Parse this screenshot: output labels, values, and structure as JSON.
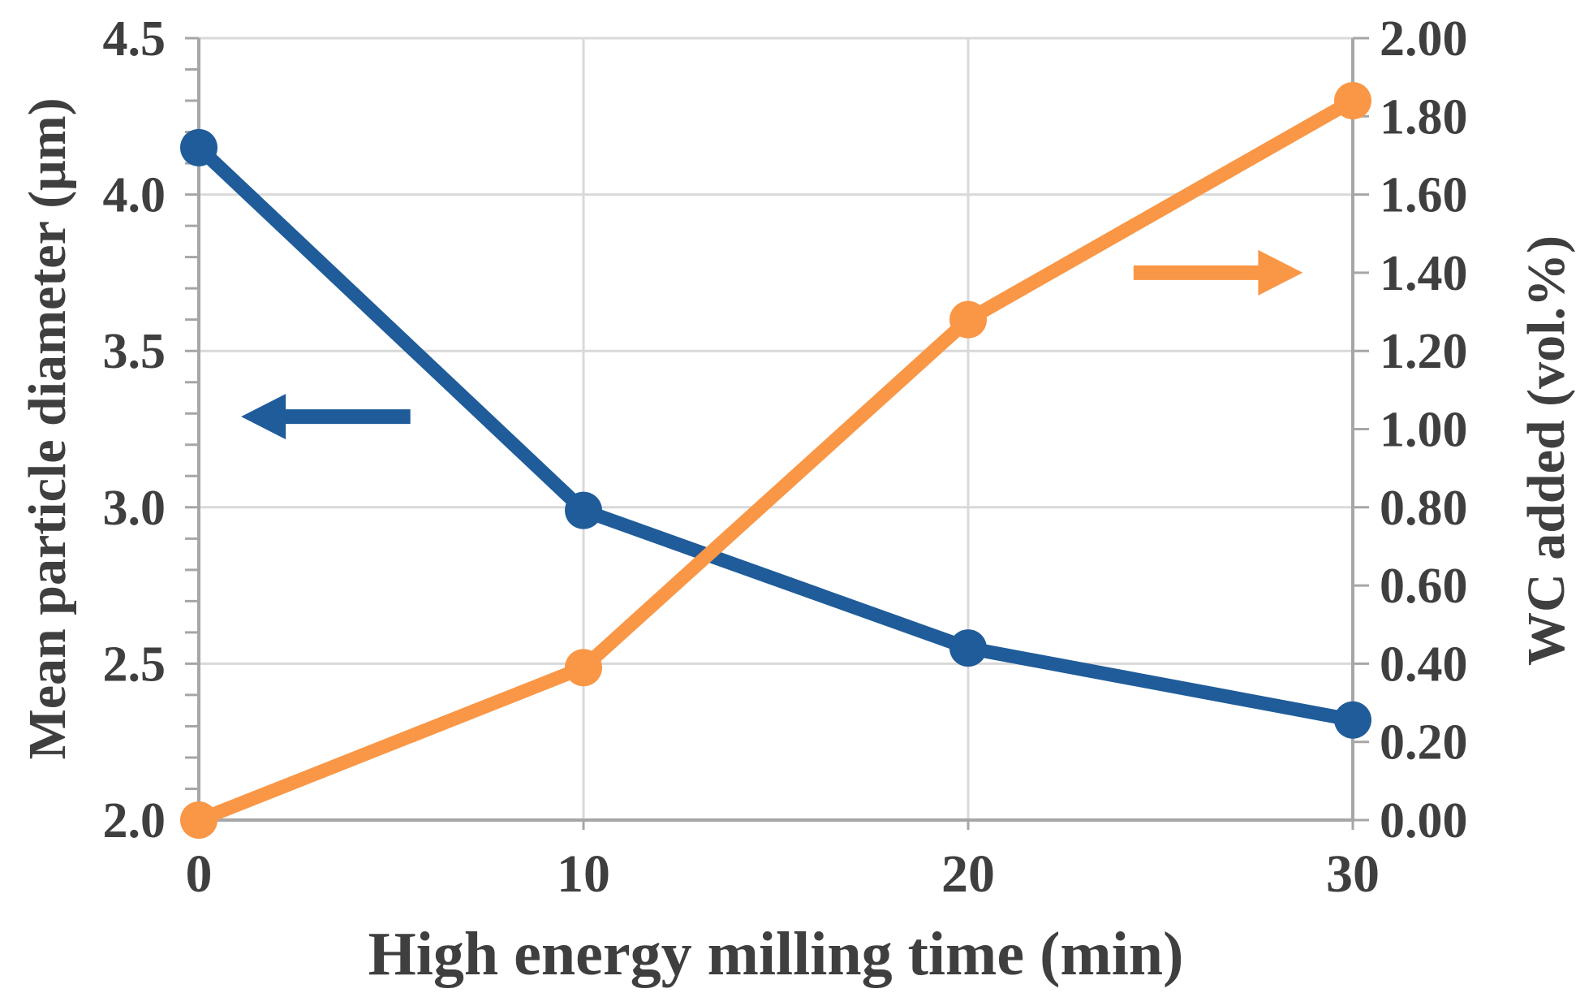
{
  "chart_data": {
    "type": "line",
    "title": "",
    "x": [
      0,
      10,
      20,
      30
    ],
    "xlim": [
      0,
      30
    ],
    "x_ticks": [
      0,
      10,
      20,
      30
    ],
    "x_tick_labels": [
      "0",
      "10",
      "20",
      "30"
    ],
    "xlabel": "High energy milling  time (min)",
    "left_axis": {
      "label": "Mean particle diameter (μm)",
      "min": 2.0,
      "max": 4.5,
      "major_step": 0.5,
      "minor_step": 0.1,
      "tick_labels": [
        "2.0",
        "2.5",
        "3.0",
        "3.5",
        "4.0",
        "4.5"
      ]
    },
    "right_axis": {
      "label": "WC added (vol.%)",
      "min": 0.0,
      "max": 2.0,
      "major_step": 0.2,
      "tick_labels": [
        "0.00",
        "0.20",
        "0.40",
        "0.60",
        "0.80",
        "1.00",
        "1.20",
        "1.40",
        "1.60",
        "1.80",
        "2.00"
      ]
    },
    "series": [
      {
        "name": "Mean particle diameter",
        "axis": "left",
        "color": "#1F5C99",
        "marker": "circle",
        "values": [
          4.15,
          2.99,
          2.55,
          2.32
        ]
      },
      {
        "name": "WC added",
        "axis": "right",
        "color": "#F99746",
        "marker": "circle",
        "values": [
          0.0,
          0.39,
          1.28,
          1.84
        ]
      }
    ],
    "annotations": {
      "arrows": [
        {
          "meaning": "series read on left axis",
          "direction": "left",
          "color": "#1F5C99",
          "axis": "left",
          "y": 3.29,
          "x_tail": 5.5,
          "x_tip": 1.1
        },
        {
          "meaning": "series read on right axis",
          "direction": "right",
          "color": "#F99746",
          "axis": "right",
          "y": 1.4,
          "x_tail": 24.3,
          "x_tip": 28.7
        }
      ]
    },
    "grid": {
      "horizontal": "left-axis-majors",
      "vertical": "x-ticks",
      "visible": true
    },
    "legend": "none"
  },
  "style": {
    "background": "#FFFFFF",
    "grid_color": "#D9D9D9",
    "axis_color": "#A6A6A6",
    "text_color": "#3F3F3F",
    "blue_series_color": "#1F5C99",
    "orange_series_color": "#F99746"
  }
}
